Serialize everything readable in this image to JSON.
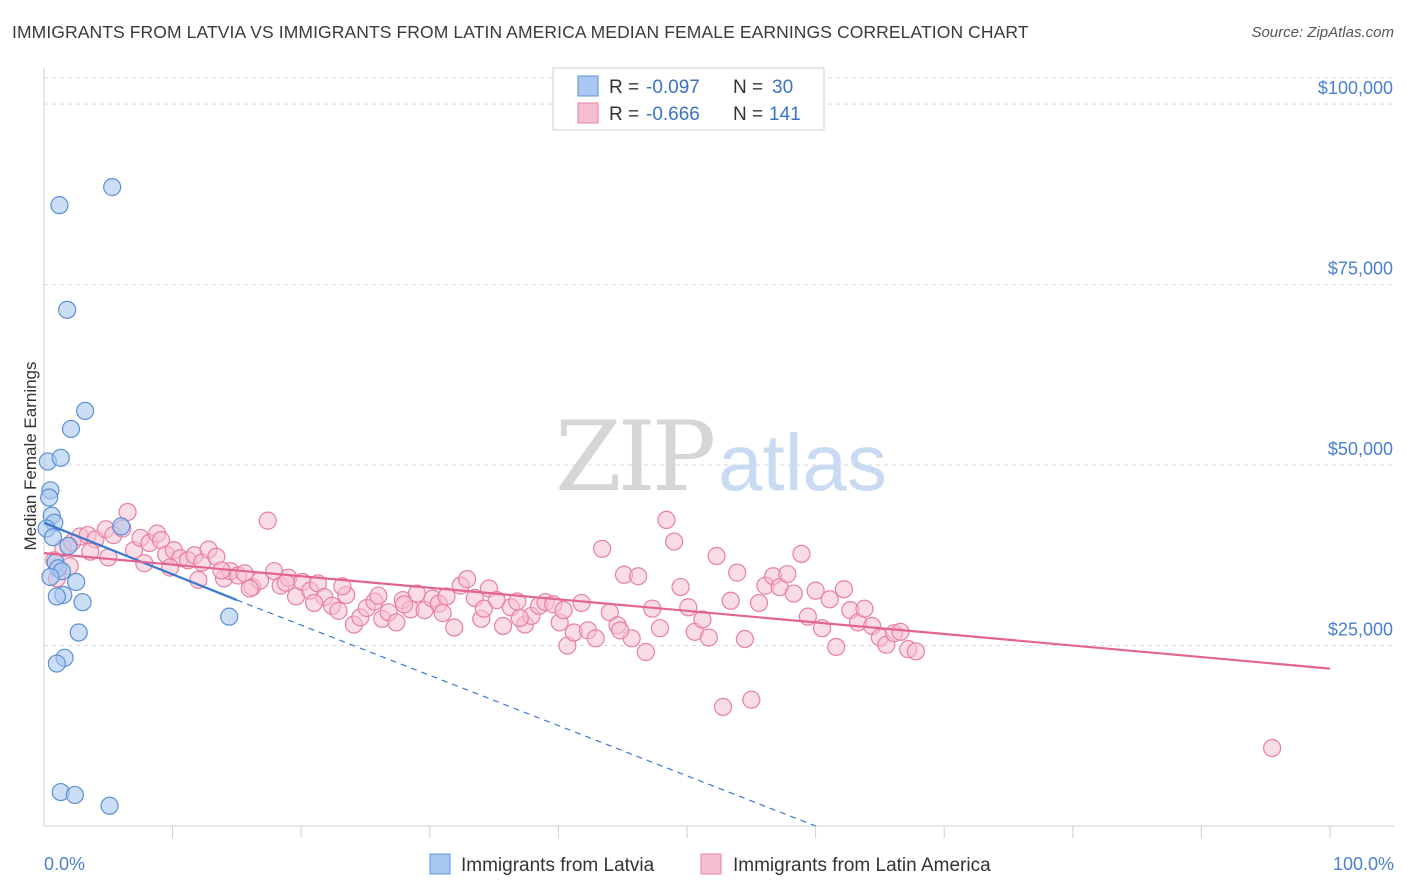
{
  "title": "IMMIGRANTS FROM LATVIA VS IMMIGRANTS FROM LATIN AMERICA MEDIAN FEMALE EARNINGS CORRELATION CHART",
  "source": "Source: ZipAtlas.com",
  "watermark": {
    "zip": "ZIP",
    "atlas": "atlas"
  },
  "colors": {
    "latvia_fill": "#a9c8ef",
    "latvia_stroke": "#5b8fd6",
    "latvia_line": "#3a78d4",
    "latam_fill": "#f6bfd0",
    "latam_stroke": "#e87fa2",
    "latam_line": "#e2648f",
    "axis_text": "#4a7fd0",
    "grid": "#d9d9d9"
  },
  "legend": {
    "rows": [
      {
        "r_label": "R = ",
        "r_value": "-0.097",
        "n_label": "N = ",
        "n_value": "30"
      },
      {
        "r_label": "R = ",
        "r_value": "-0.666",
        "n_label": "N = ",
        "n_value": "141"
      }
    ]
  },
  "chart_data": {
    "type": "scatter",
    "xlabel": "",
    "ylabel": "Median Female Earnings",
    "xlim": [
      0,
      100
    ],
    "ylim": [
      0,
      105000
    ],
    "x_tick_labels": [
      "0.0%",
      "100.0%"
    ],
    "y_ticks": [
      25000,
      50000,
      75000,
      100000
    ],
    "y_tick_labels": [
      "$25,000",
      "$50,000",
      "$75,000",
      "$100,000"
    ],
    "grid": true,
    "series": [
      {
        "name": "Immigrants from Latvia",
        "points": [
          [
            1.2,
            86000
          ],
          [
            5.3,
            88500
          ],
          [
            1.8,
            71500
          ],
          [
            3.2,
            57500
          ],
          [
            2.1,
            55000
          ],
          [
            0.3,
            50500
          ],
          [
            1.3,
            51000
          ],
          [
            0.5,
            46500
          ],
          [
            0.4,
            45500
          ],
          [
            0.6,
            43000
          ],
          [
            0.8,
            42000
          ],
          [
            0.2,
            41200
          ],
          [
            6.0,
            41500
          ],
          [
            0.9,
            36500
          ],
          [
            1.1,
            35700
          ],
          [
            1.4,
            35300
          ],
          [
            2.5,
            33800
          ],
          [
            1.5,
            32000
          ],
          [
            1.0,
            31800
          ],
          [
            14.4,
            29000
          ],
          [
            2.7,
            26800
          ],
          [
            1.6,
            23300
          ],
          [
            1.0,
            22500
          ],
          [
            1.3,
            4700
          ],
          [
            2.4,
            4300
          ],
          [
            5.1,
            2800
          ],
          [
            0.7,
            40000
          ],
          [
            1.9,
            38800
          ],
          [
            0.5,
            34500
          ],
          [
            3.0,
            31000
          ]
        ],
        "trend": {
          "x0": 0,
          "y0": 42000,
          "x1": 15,
          "y1": 31300,
          "dashed_to_x": 60,
          "dashed_to_y": 0
        }
      },
      {
        "name": "Immigrants from Latin America",
        "points": [
          [
            0.8,
            36800
          ],
          [
            1.5,
            38500
          ],
          [
            2.2,
            39300
          ],
          [
            2.8,
            40100
          ],
          [
            3.4,
            40300
          ],
          [
            4.0,
            39700
          ],
          [
            4.8,
            41100
          ],
          [
            5.4,
            40300
          ],
          [
            6.1,
            41200
          ],
          [
            6.5,
            43500
          ],
          [
            7.0,
            38200
          ],
          [
            7.5,
            39900
          ],
          [
            8.2,
            39200
          ],
          [
            8.8,
            40500
          ],
          [
            9.1,
            39600
          ],
          [
            9.5,
            37600
          ],
          [
            10.1,
            38200
          ],
          [
            10.6,
            37100
          ],
          [
            11.2,
            36800
          ],
          [
            11.7,
            37500
          ],
          [
            12.3,
            36500
          ],
          [
            12.8,
            38300
          ],
          [
            13.4,
            37300
          ],
          [
            14.0,
            34300
          ],
          [
            14.5,
            35300
          ],
          [
            15.1,
            34700
          ],
          [
            15.6,
            35000
          ],
          [
            16.2,
            33100
          ],
          [
            16.8,
            34000
          ],
          [
            17.4,
            42300
          ],
          [
            17.9,
            35300
          ],
          [
            18.4,
            33300
          ],
          [
            19.0,
            34400
          ],
          [
            19.6,
            31800
          ],
          [
            20.1,
            33800
          ],
          [
            20.7,
            32600
          ],
          [
            21.3,
            33600
          ],
          [
            21.8,
            31700
          ],
          [
            22.4,
            30500
          ],
          [
            22.9,
            29800
          ],
          [
            23.5,
            32000
          ],
          [
            24.1,
            27900
          ],
          [
            24.6,
            28900
          ],
          [
            25.1,
            30200
          ],
          [
            25.7,
            31100
          ],
          [
            26.3,
            28700
          ],
          [
            26.8,
            29600
          ],
          [
            27.4,
            28200
          ],
          [
            27.9,
            31300
          ],
          [
            28.5,
            30000
          ],
          [
            29.0,
            32200
          ],
          [
            29.6,
            29900
          ],
          [
            30.2,
            31500
          ],
          [
            30.7,
            30800
          ],
          [
            31.3,
            31800
          ],
          [
            31.9,
            27500
          ],
          [
            32.4,
            33300
          ],
          [
            32.9,
            34200
          ],
          [
            33.5,
            31600
          ],
          [
            34.0,
            28700
          ],
          [
            34.6,
            32900
          ],
          [
            35.2,
            31300
          ],
          [
            35.7,
            27700
          ],
          [
            36.3,
            30300
          ],
          [
            36.8,
            31100
          ],
          [
            37.4,
            27900
          ],
          [
            37.9,
            29100
          ],
          [
            38.5,
            30500
          ],
          [
            39.0,
            31000
          ],
          [
            39.6,
            30700
          ],
          [
            40.1,
            28200
          ],
          [
            40.7,
            25000
          ],
          [
            41.2,
            26800
          ],
          [
            41.8,
            30900
          ],
          [
            42.3,
            27100
          ],
          [
            42.9,
            26000
          ],
          [
            43.4,
            38400
          ],
          [
            44.0,
            29600
          ],
          [
            44.6,
            27800
          ],
          [
            45.1,
            34800
          ],
          [
            45.7,
            26000
          ],
          [
            46.2,
            34600
          ],
          [
            46.8,
            24100
          ],
          [
            47.3,
            30100
          ],
          [
            47.9,
            27400
          ],
          [
            48.4,
            42400
          ],
          [
            49.0,
            39400
          ],
          [
            49.5,
            33100
          ],
          [
            50.1,
            30300
          ],
          [
            50.6,
            26900
          ],
          [
            51.2,
            28600
          ],
          [
            51.7,
            26100
          ],
          [
            52.3,
            37400
          ],
          [
            52.8,
            16500
          ],
          [
            53.4,
            31200
          ],
          [
            53.9,
            35100
          ],
          [
            54.5,
            25900
          ],
          [
            55.0,
            17500
          ],
          [
            55.6,
            30900
          ],
          [
            56.1,
            33300
          ],
          [
            56.7,
            34600
          ],
          [
            57.2,
            33100
          ],
          [
            57.8,
            34900
          ],
          [
            58.3,
            32200
          ],
          [
            58.9,
            37700
          ],
          [
            59.4,
            29000
          ],
          [
            60.0,
            32600
          ],
          [
            60.5,
            27400
          ],
          [
            61.1,
            31400
          ],
          [
            61.6,
            24800
          ],
          [
            62.2,
            32800
          ],
          [
            62.7,
            29900
          ],
          [
            63.3,
            28200
          ],
          [
            63.8,
            30100
          ],
          [
            64.4,
            27700
          ],
          [
            65.0,
            26100
          ],
          [
            65.5,
            25100
          ],
          [
            66.1,
            26700
          ],
          [
            66.6,
            26900
          ],
          [
            67.2,
            24500
          ],
          [
            67.8,
            24200
          ],
          [
            1.0,
            34300
          ],
          [
            2.0,
            36000
          ],
          [
            3.6,
            38000
          ],
          [
            5.0,
            37200
          ],
          [
            7.8,
            36400
          ],
          [
            9.8,
            35800
          ],
          [
            12.0,
            34100
          ],
          [
            13.8,
            35400
          ],
          [
            16.0,
            32900
          ],
          [
            18.8,
            33700
          ],
          [
            21.0,
            30900
          ],
          [
            23.2,
            33200
          ],
          [
            26.0,
            31900
          ],
          [
            28.0,
            30700
          ],
          [
            31.0,
            29500
          ],
          [
            34.2,
            30100
          ],
          [
            37.0,
            28800
          ],
          [
            40.4,
            29900
          ],
          [
            44.8,
            27100
          ],
          [
            95.5,
            10800
          ]
        ],
        "trend": {
          "x0": 0,
          "y0": 37800,
          "x1": 100,
          "y1": 21800
        }
      }
    ]
  }
}
